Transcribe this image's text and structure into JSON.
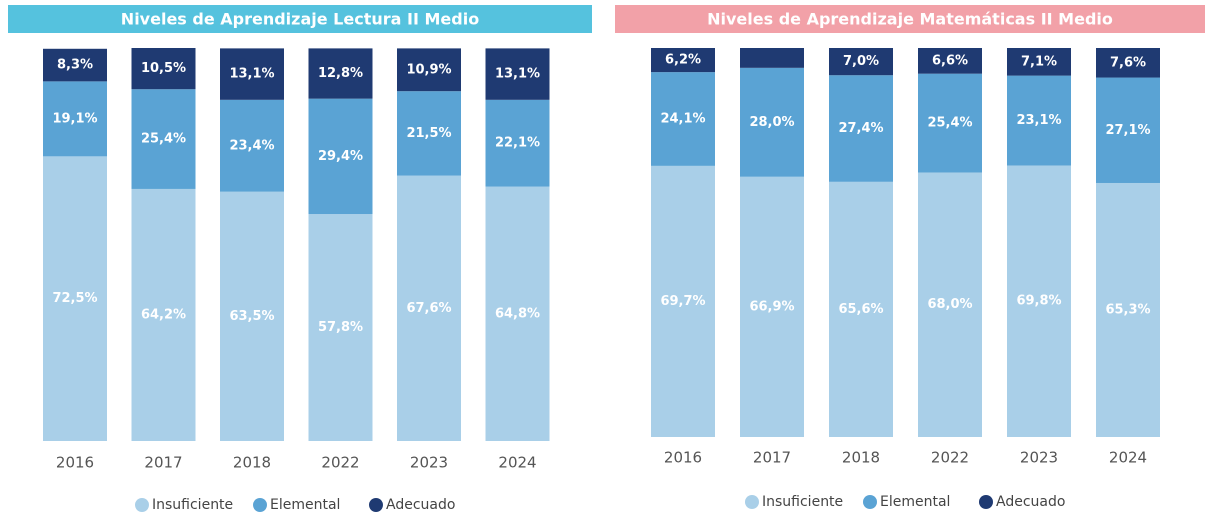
{
  "chart_data": [
    {
      "type": "stacked-bar",
      "title": "Niveles de Aprendizaje Lectura II Medio",
      "categories": [
        "2016",
        "2017",
        "2018",
        "2022",
        "2023",
        "2024"
      ],
      "series": [
        {
          "name": "Insuficiente",
          "color": "#a9cfe8",
          "values": [
            72.5,
            64.2,
            63.5,
            57.8,
            67.6,
            64.8
          ],
          "value_labels": [
            "72,5%",
            "64,2%",
            "63,5%",
            "57,8%",
            "67,6%",
            "64,8%"
          ]
        },
        {
          "name": "Elemental",
          "color": "#5aa3d4",
          "values": [
            19.1,
            25.4,
            23.4,
            29.4,
            21.5,
            22.1
          ],
          "value_labels": [
            "19,1%",
            "25,4%",
            "23,4%",
            "29,4%",
            "21,5%",
            "22,1%"
          ]
        },
        {
          "name": "Adecuado",
          "color": "#1f3a72",
          "values": [
            8.3,
            10.5,
            13.1,
            12.8,
            10.9,
            13.1
          ],
          "value_labels": [
            "8,3%",
            "10,5%",
            "13,1%",
            "12,8%",
            "10,9%",
            "13,1%"
          ]
        }
      ]
    },
    {
      "type": "stacked-bar",
      "title": "Niveles de Aprendizaje Matemáticas II Medio",
      "categories": [
        "2016",
        "2017",
        "2018",
        "2022",
        "2023",
        "2024"
      ],
      "series": [
        {
          "name": "Insuficiente",
          "color": "#a9cfe8",
          "values": [
            69.7,
            66.9,
            65.6,
            68.0,
            69.8,
            65.3
          ],
          "value_labels": [
            "69,7%",
            "66,9%",
            "65,6%",
            "68,0%",
            "69,8%",
            "65,3%"
          ]
        },
        {
          "name": "Elemental",
          "color": "#5aa3d4",
          "values": [
            24.1,
            28.0,
            27.4,
            25.4,
            23.1,
            27.1
          ],
          "value_labels": [
            "24,1%",
            "28,0%",
            "27,4%",
            "25,4%",
            "23,1%",
            "27,1%"
          ]
        },
        {
          "name": "Adecuado",
          "color": "#1f3a72",
          "values": [
            6.2,
            5.1,
            7.0,
            6.6,
            7.1,
            7.6
          ],
          "value_labels": [
            "6,2%",
            null,
            "7,0%",
            "6,6%",
            "7,1%",
            "7,6%"
          ]
        }
      ]
    }
  ]
}
